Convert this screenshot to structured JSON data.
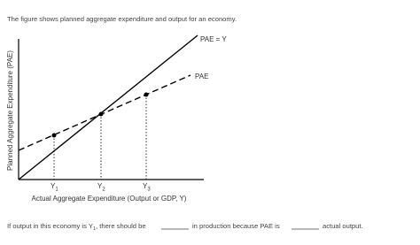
{
  "intro": "The figure shows planned aggregate expenditure and output for an economy.",
  "figure": {
    "y_axis_label": "Planned Aggregate Expenditure (PAE)",
    "x_axis_label": "Actual Aggregate Expenditure (Output or GDP, Y)",
    "line_labels": [
      "PAE = Y",
      "PAE"
    ],
    "ticks": [
      {
        "main": "Y",
        "sub": "1"
      },
      {
        "main": "Y",
        "sub": "2"
      },
      {
        "main": "Y",
        "sub": "3"
      }
    ]
  },
  "question": {
    "parts": [
      "If output in this economy is Y",
      "1",
      ", there should be",
      "in production because PAE is",
      "actual output."
    ]
  }
}
